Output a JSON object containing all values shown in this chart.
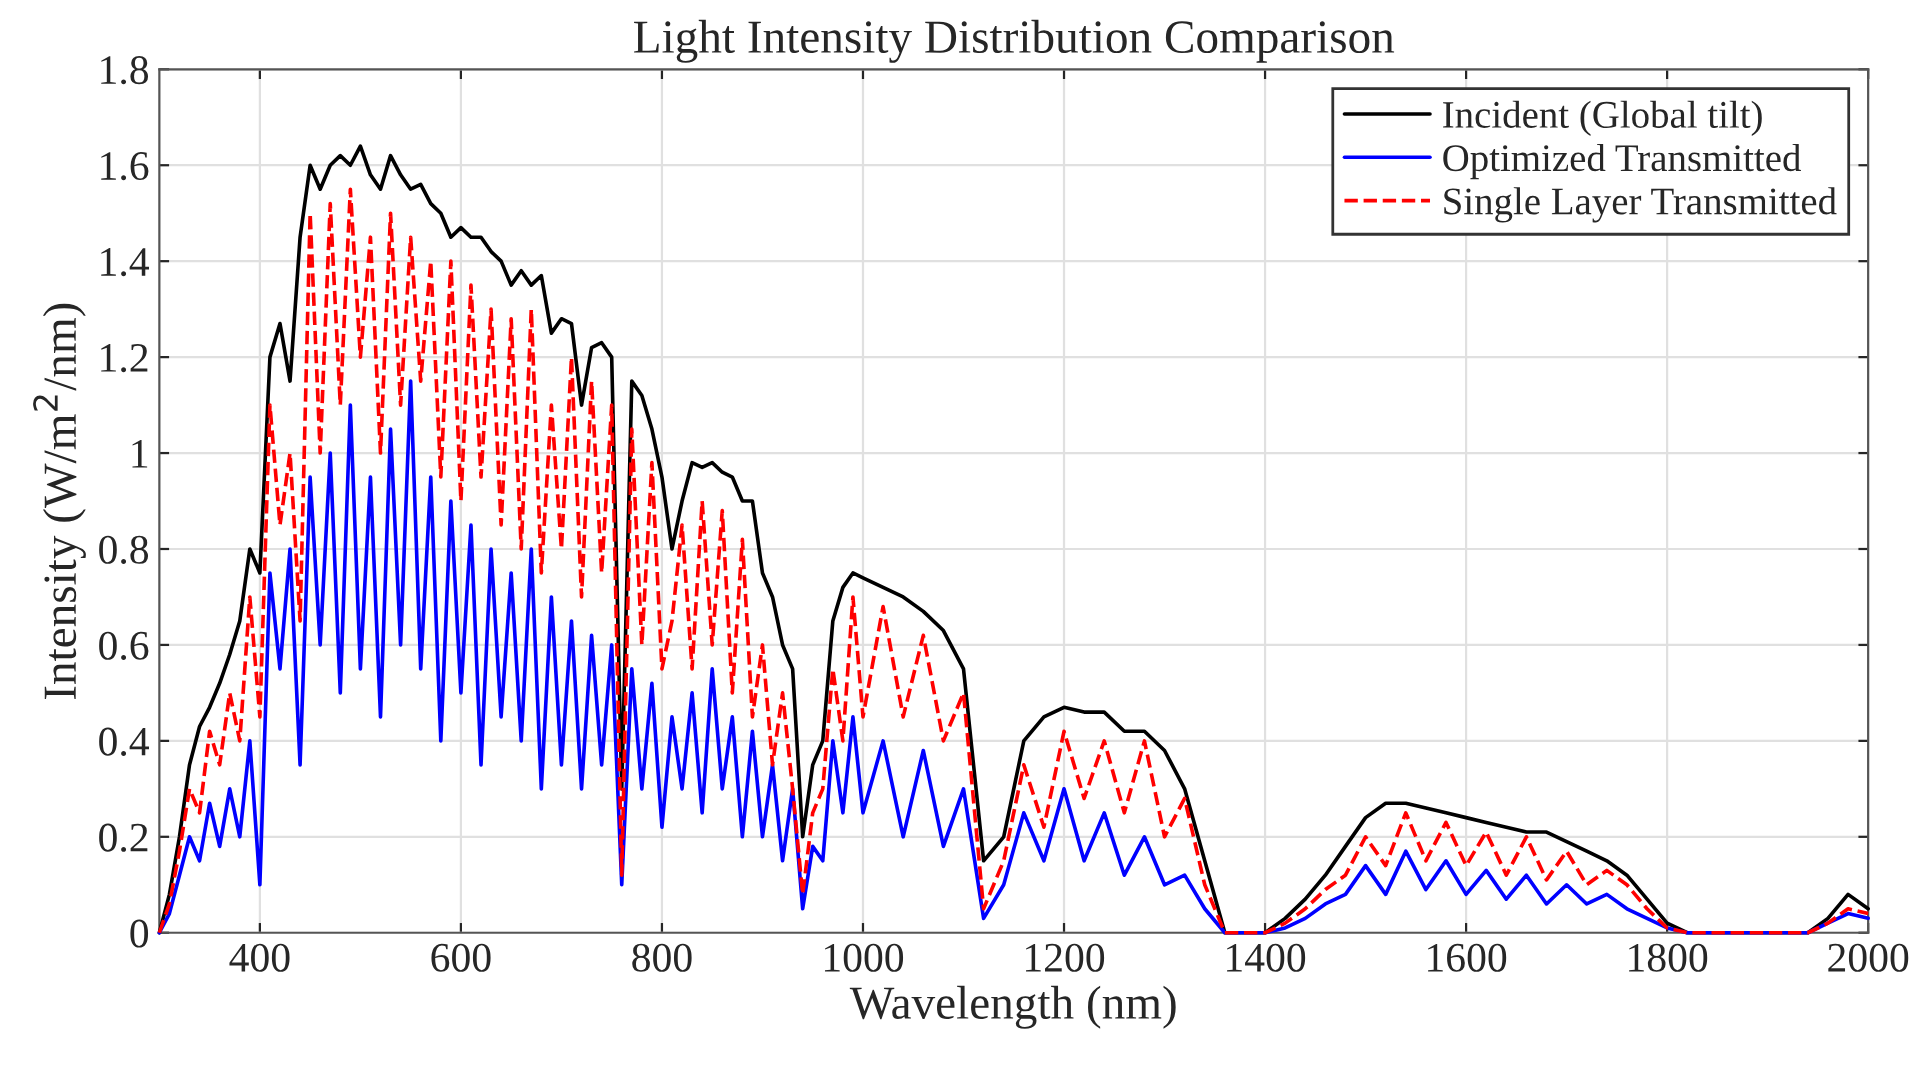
{
  "chart_data": {
    "type": "line",
    "title": "Light Intensity Distribution Comparison",
    "xlabel": "Wavelength (nm)",
    "ylabel": "Intensity (W/m$^{2}$/nm)",
    "x": [
      300,
      310,
      320,
      330,
      340,
      350,
      360,
      370,
      380,
      390,
      400,
      410,
      420,
      430,
      440,
      450,
      460,
      470,
      480,
      490,
      500,
      510,
      520,
      530,
      540,
      550,
      560,
      570,
      580,
      590,
      600,
      610,
      620,
      630,
      640,
      650,
      660,
      670,
      680,
      690,
      700,
      710,
      720,
      730,
      740,
      750,
      760,
      770,
      780,
      790,
      800,
      810,
      820,
      830,
      840,
      850,
      860,
      870,
      880,
      890,
      900,
      910,
      920,
      930,
      940,
      950,
      960,
      970,
      980,
      990,
      1000,
      1020,
      1040,
      1060,
      1080,
      1100,
      1120,
      1140,
      1160,
      1180,
      1200,
      1220,
      1240,
      1260,
      1280,
      1300,
      1320,
      1340,
      1360,
      1380,
      1400,
      1420,
      1440,
      1460,
      1480,
      1500,
      1520,
      1540,
      1560,
      1580,
      1600,
      1620,
      1640,
      1660,
      1680,
      1700,
      1720,
      1740,
      1760,
      1780,
      1800,
      1820,
      1840,
      1860,
      1880,
      1900,
      1920,
      1940,
      1960,
      1980,
      2000
    ],
    "series": [
      {
        "name": "Incident (Global tilt)",
        "color": "#000000",
        "line_style": "solid",
        "values": [
          0.0,
          0.08,
          0.2,
          0.35,
          0.43,
          0.47,
          0.52,
          0.58,
          0.65,
          0.8,
          0.75,
          1.2,
          1.27,
          1.15,
          1.45,
          1.6,
          1.55,
          1.6,
          1.62,
          1.6,
          1.64,
          1.58,
          1.55,
          1.62,
          1.58,
          1.55,
          1.56,
          1.52,
          1.5,
          1.45,
          1.47,
          1.45,
          1.45,
          1.42,
          1.4,
          1.35,
          1.38,
          1.35,
          1.37,
          1.25,
          1.28,
          1.27,
          1.1,
          1.22,
          1.23,
          1.2,
          0.3,
          1.15,
          1.12,
          1.05,
          0.95,
          0.8,
          0.9,
          0.98,
          0.97,
          0.98,
          0.96,
          0.95,
          0.9,
          0.9,
          0.75,
          0.7,
          0.6,
          0.55,
          0.2,
          0.35,
          0.4,
          0.65,
          0.72,
          0.75,
          0.74,
          0.72,
          0.7,
          0.67,
          0.63,
          0.55,
          0.15,
          0.2,
          0.4,
          0.45,
          0.47,
          0.46,
          0.46,
          0.42,
          0.42,
          0.38,
          0.3,
          0.15,
          0.0,
          0.0,
          0.0,
          0.03,
          0.07,
          0.12,
          0.18,
          0.24,
          0.27,
          0.27,
          0.26,
          0.25,
          0.24,
          0.23,
          0.22,
          0.21,
          0.21,
          0.19,
          0.17,
          0.15,
          0.12,
          0.07,
          0.02,
          0.0,
          0.0,
          0.0,
          0.0,
          0.0,
          0.0,
          0.0,
          0.03,
          0.08,
          0.05
        ]
      },
      {
        "name": "Optimized Transmitted",
        "color": "#0000ff",
        "line_style": "solid",
        "values": [
          0.0,
          0.04,
          0.12,
          0.2,
          0.15,
          0.27,
          0.18,
          0.3,
          0.2,
          0.4,
          0.1,
          0.75,
          0.55,
          0.8,
          0.35,
          0.95,
          0.6,
          1.0,
          0.5,
          1.1,
          0.55,
          0.95,
          0.45,
          1.05,
          0.6,
          1.15,
          0.55,
          0.95,
          0.4,
          0.9,
          0.5,
          0.85,
          0.35,
          0.8,
          0.45,
          0.75,
          0.4,
          0.8,
          0.3,
          0.7,
          0.35,
          0.65,
          0.3,
          0.62,
          0.35,
          0.6,
          0.1,
          0.55,
          0.3,
          0.52,
          0.22,
          0.45,
          0.3,
          0.5,
          0.25,
          0.55,
          0.3,
          0.45,
          0.2,
          0.42,
          0.2,
          0.35,
          0.15,
          0.3,
          0.05,
          0.18,
          0.15,
          0.4,
          0.25,
          0.45,
          0.25,
          0.4,
          0.2,
          0.38,
          0.18,
          0.3,
          0.03,
          0.1,
          0.25,
          0.15,
          0.3,
          0.15,
          0.25,
          0.12,
          0.2,
          0.1,
          0.12,
          0.05,
          0.0,
          0.0,
          0.0,
          0.01,
          0.03,
          0.06,
          0.08,
          0.14,
          0.08,
          0.17,
          0.09,
          0.15,
          0.08,
          0.13,
          0.07,
          0.12,
          0.06,
          0.1,
          0.06,
          0.08,
          0.05,
          0.03,
          0.01,
          0.0,
          0.0,
          0.0,
          0.0,
          0.0,
          0.0,
          0.0,
          0.02,
          0.04,
          0.03
        ]
      },
      {
        "name": "Single Layer Transmitted",
        "color": "#ff0000",
        "line_style": "dashed",
        "values": [
          0.0,
          0.06,
          0.17,
          0.3,
          0.25,
          0.42,
          0.35,
          0.5,
          0.4,
          0.7,
          0.45,
          1.1,
          0.85,
          1.0,
          0.65,
          1.5,
          1.0,
          1.52,
          1.1,
          1.55,
          1.2,
          1.45,
          1.0,
          1.5,
          1.1,
          1.45,
          1.15,
          1.4,
          0.95,
          1.4,
          0.9,
          1.35,
          0.95,
          1.3,
          0.85,
          1.28,
          0.8,
          1.3,
          0.75,
          1.1,
          0.8,
          1.2,
          0.7,
          1.15,
          0.75,
          1.1,
          0.12,
          1.05,
          0.6,
          0.98,
          0.55,
          0.65,
          0.85,
          0.55,
          0.9,
          0.6,
          0.88,
          0.5,
          0.82,
          0.45,
          0.6,
          0.35,
          0.5,
          0.3,
          0.08,
          0.25,
          0.3,
          0.55,
          0.4,
          0.7,
          0.45,
          0.68,
          0.45,
          0.62,
          0.4,
          0.5,
          0.05,
          0.15,
          0.35,
          0.22,
          0.42,
          0.28,
          0.4,
          0.25,
          0.4,
          0.2,
          0.28,
          0.1,
          0.0,
          0.0,
          0.0,
          0.02,
          0.05,
          0.09,
          0.12,
          0.2,
          0.14,
          0.25,
          0.15,
          0.23,
          0.14,
          0.21,
          0.12,
          0.2,
          0.11,
          0.17,
          0.1,
          0.13,
          0.1,
          0.05,
          0.01,
          0.0,
          0.0,
          0.0,
          0.0,
          0.0,
          0.0,
          0.0,
          0.02,
          0.05,
          0.04
        ]
      }
    ],
    "xlim": [
      300,
      2000
    ],
    "xticks": [
      400,
      600,
      800,
      1000,
      1200,
      1400,
      1600,
      1800,
      2000
    ],
    "ylim": [
      0,
      1.8
    ],
    "yticks": [
      {
        "value": 0,
        "label": "0"
      },
      0.2,
      0.4,
      0.6,
      0.8,
      {
        "value": 1,
        "label": "1"
      },
      1.2,
      1.4,
      1.6,
      1.8
    ],
    "grid": true,
    "legend": "top right",
    "marker": "none"
  }
}
